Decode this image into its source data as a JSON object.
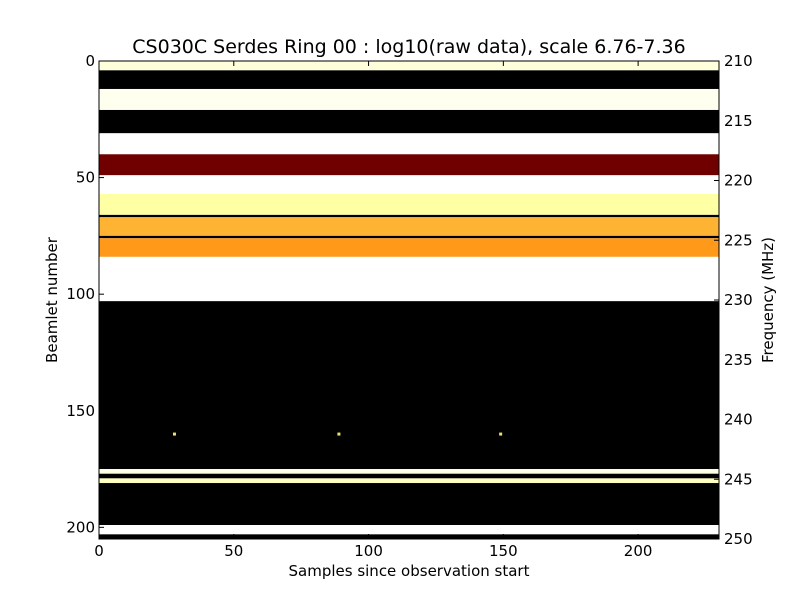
{
  "chart_data": {
    "type": "heatmap",
    "title": "CS030C Serdes Ring 00 : log10(raw data), scale 6.76-7.36",
    "xlabel": "Samples since observation start",
    "ylabel": "Beamlet number",
    "y2label": "Frequency (MHz)",
    "xlim": [
      0,
      230
    ],
    "ylim": [
      205,
      0
    ],
    "y2lim": [
      210,
      250
    ],
    "x_ticks": [
      0,
      50,
      100,
      150,
      200
    ],
    "y_ticks": [
      0,
      50,
      100,
      150,
      200
    ],
    "y2_ticks": [
      210,
      215,
      220,
      225,
      230,
      235,
      240,
      245,
      250
    ],
    "colormap": "afmhot",
    "color_scale": [
      6.76,
      7.36
    ],
    "bands": [
      {
        "y0": 0,
        "y1": 4,
        "level": 0.93
      },
      {
        "y0": 4,
        "y1": 12,
        "level": 0.0
      },
      {
        "y0": 12,
        "y1": 21,
        "level": 0.97
      },
      {
        "y0": 21,
        "y1": 31,
        "level": 0.0
      },
      {
        "y0": 31,
        "y1": 40,
        "level": 1.0
      },
      {
        "y0": 40,
        "y1": 49,
        "level": 0.22
      },
      {
        "y0": 49,
        "y1": 57,
        "level": 1.0
      },
      {
        "y0": 57,
        "y1": 66,
        "level": 0.82
      },
      {
        "y0": 66,
        "y1": 67,
        "level": 0.0
      },
      {
        "y0": 67,
        "y1": 75,
        "level": 0.6
      },
      {
        "y0": 75,
        "y1": 76,
        "level": 0.0
      },
      {
        "y0": 76,
        "y1": 84,
        "level": 0.55
      },
      {
        "y0": 84,
        "y1": 103,
        "level": 1.0
      },
      {
        "y0": 103,
        "y1": 175,
        "level": 0.0
      },
      {
        "y0": 175,
        "y1": 177,
        "level": 0.95
      },
      {
        "y0": 177,
        "y1": 179,
        "level": 0.0
      },
      {
        "y0": 179,
        "y1": 181,
        "level": 0.88
      },
      {
        "y0": 181,
        "y1": 199,
        "level": 0.0
      },
      {
        "y0": 199,
        "y1": 203,
        "level": 1.0
      },
      {
        "y0": 203,
        "y1": 205,
        "level": 0.0
      }
    ],
    "hot_pixels": [
      {
        "x": 28,
        "y": 160
      },
      {
        "x": 89,
        "y": 160
      },
      {
        "x": 149,
        "y": 160
      }
    ]
  }
}
